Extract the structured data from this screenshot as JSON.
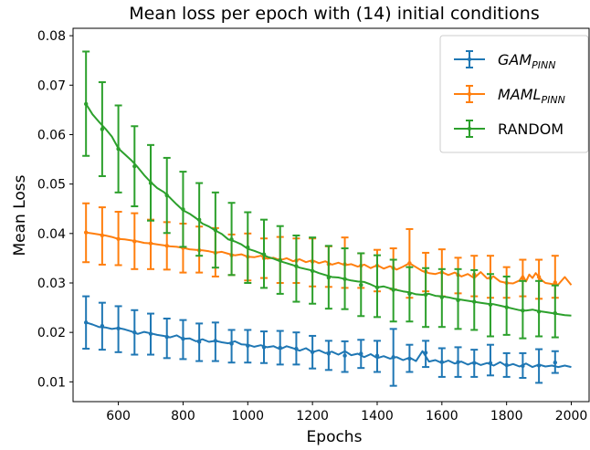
{
  "chart_data": {
    "type": "line",
    "title": "Mean loss per epoch with (14) initial conditions",
    "xlabel": "Epochs",
    "ylabel": "Mean Loss",
    "xlim": [
      460,
      2055
    ],
    "ylim": [
      0.006,
      0.0815
    ],
    "xticks": [
      600,
      800,
      1000,
      1200,
      1400,
      1600,
      1800,
      2000
    ],
    "yticks": [
      0.01,
      0.02,
      0.03,
      0.04,
      0.05,
      0.06,
      0.07,
      0.08
    ],
    "xtick_labels": [
      "600",
      "800",
      "1000",
      "1200",
      "1400",
      "1600",
      "1800",
      "2000"
    ],
    "ytick_labels": [
      "0.01",
      "0.02",
      "0.03",
      "0.04",
      "0.05",
      "0.06",
      "0.07",
      "0.08"
    ],
    "grid": false,
    "legend_position": "upper right",
    "series": [
      {
        "name": "GAM",
        "subscript": "PINN",
        "color": "#1f77b4",
        "line_x": [
          500,
          520,
          540,
          560,
          580,
          600,
          620,
          640,
          660,
          680,
          700,
          720,
          740,
          760,
          780,
          800,
          820,
          840,
          860,
          880,
          900,
          920,
          940,
          960,
          980,
          1000,
          1020,
          1040,
          1060,
          1080,
          1100,
          1120,
          1140,
          1160,
          1180,
          1200,
          1220,
          1240,
          1260,
          1280,
          1300,
          1320,
          1340,
          1360,
          1380,
          1400,
          1420,
          1440,
          1460,
          1480,
          1500,
          1520,
          1540,
          1560,
          1580,
          1600,
          1620,
          1640,
          1660,
          1680,
          1700,
          1720,
          1740,
          1760,
          1780,
          1800,
          1820,
          1840,
          1860,
          1880,
          1900,
          1920,
          1940,
          1960,
          1980,
          2000
        ],
        "line_y": [
          0.022,
          0.0216,
          0.0211,
          0.021,
          0.0207,
          0.0209,
          0.0206,
          0.0202,
          0.0197,
          0.0201,
          0.0198,
          0.0195,
          0.0193,
          0.019,
          0.0194,
          0.0187,
          0.0188,
          0.0182,
          0.0186,
          0.0181,
          0.0183,
          0.018,
          0.0178,
          0.0182,
          0.0176,
          0.0175,
          0.0171,
          0.0174,
          0.017,
          0.0172,
          0.0166,
          0.0172,
          0.0168,
          0.0163,
          0.0168,
          0.016,
          0.0164,
          0.0158,
          0.0161,
          0.0155,
          0.0162,
          0.0154,
          0.0157,
          0.015,
          0.0156,
          0.0148,
          0.0152,
          0.0147,
          0.015,
          0.0144,
          0.0149,
          0.0142,
          0.0162,
          0.0141,
          0.0144,
          0.0138,
          0.0143,
          0.0137,
          0.0141,
          0.0135,
          0.014,
          0.0134,
          0.0138,
          0.0133,
          0.014,
          0.0132,
          0.0136,
          0.0131,
          0.0137,
          0.013,
          0.0135,
          0.0131,
          0.0133,
          0.013,
          0.0133,
          0.013
        ],
        "error_x": [
          500,
          550,
          600,
          650,
          700,
          750,
          800,
          850,
          900,
          950,
          1000,
          1050,
          1100,
          1150,
          1200,
          1250,
          1300,
          1350,
          1400,
          1450,
          1500,
          1550,
          1600,
          1650,
          1700,
          1750,
          1800,
          1850,
          1900,
          1950
        ],
        "error_y": [
          0.022,
          0.0213,
          0.0208,
          0.02,
          0.0197,
          0.0191,
          0.0187,
          0.0181,
          0.0183,
          0.0177,
          0.0173,
          0.017,
          0.0169,
          0.0167,
          0.016,
          0.0157,
          0.0153,
          0.0157,
          0.0153,
          0.015,
          0.0147,
          0.0159,
          0.014,
          0.014,
          0.0138,
          0.0138,
          0.0134,
          0.0132,
          0.0133,
          0.0139
        ],
        "error_low": [
          0.0167,
          0.0165,
          0.016,
          0.0155,
          0.0155,
          0.0148,
          0.0146,
          0.0142,
          0.0142,
          0.0139,
          0.0139,
          0.0138,
          0.0135,
          0.0135,
          0.0127,
          0.0124,
          0.012,
          0.0128,
          0.012,
          0.0092,
          0.012,
          0.013,
          0.011,
          0.011,
          0.011,
          0.0113,
          0.011,
          0.0108,
          0.0098,
          0.0118
        ],
        "error_high": [
          0.0273,
          0.026,
          0.0253,
          0.0245,
          0.0238,
          0.0228,
          0.0225,
          0.0218,
          0.022,
          0.0205,
          0.0205,
          0.0202,
          0.0203,
          0.02,
          0.0193,
          0.0183,
          0.0182,
          0.0185,
          0.0183,
          0.0207,
          0.0175,
          0.0183,
          0.0168,
          0.017,
          0.0165,
          0.0175,
          0.0158,
          0.0158,
          0.0166,
          0.0162
        ]
      },
      {
        "name": "MAML",
        "subscript": "PINN",
        "color": "#ff7f0e",
        "line_x": [
          500,
          520,
          540,
          560,
          580,
          600,
          620,
          640,
          660,
          680,
          700,
          720,
          740,
          760,
          780,
          800,
          820,
          840,
          860,
          880,
          900,
          920,
          940,
          960,
          980,
          1000,
          1020,
          1040,
          1060,
          1080,
          1100,
          1120,
          1140,
          1160,
          1180,
          1200,
          1220,
          1240,
          1260,
          1280,
          1300,
          1320,
          1340,
          1360,
          1380,
          1400,
          1420,
          1440,
          1460,
          1480,
          1500,
          1520,
          1540,
          1560,
          1580,
          1600,
          1620,
          1640,
          1660,
          1680,
          1700,
          1720,
          1740,
          1760,
          1780,
          1800,
          1820,
          1840,
          1850,
          1860,
          1870,
          1880,
          1890,
          1900,
          1910,
          1920,
          1940,
          1960,
          1980,
          2000
        ],
        "line_y": [
          0.0402,
          0.04,
          0.0398,
          0.0396,
          0.0393,
          0.0389,
          0.0388,
          0.0386,
          0.0384,
          0.0381,
          0.038,
          0.0378,
          0.0376,
          0.0374,
          0.0373,
          0.0371,
          0.0368,
          0.0367,
          0.0366,
          0.0364,
          0.0361,
          0.0363,
          0.0359,
          0.0356,
          0.0358,
          0.0353,
          0.0352,
          0.0355,
          0.0349,
          0.0351,
          0.0346,
          0.035,
          0.0344,
          0.0348,
          0.0342,
          0.0346,
          0.034,
          0.0344,
          0.0337,
          0.0341,
          0.0336,
          0.0338,
          0.0333,
          0.0337,
          0.033,
          0.0336,
          0.0329,
          0.0334,
          0.0327,
          0.0333,
          0.034,
          0.0332,
          0.0324,
          0.032,
          0.0318,
          0.0322,
          0.0316,
          0.0321,
          0.0313,
          0.0318,
          0.031,
          0.0322,
          0.0309,
          0.0313,
          0.0303,
          0.03,
          0.0299,
          0.0305,
          0.0315,
          0.0303,
          0.0317,
          0.031,
          0.032,
          0.0312,
          0.0305,
          0.03,
          0.0298,
          0.0297,
          0.0312,
          0.0296
        ],
        "error_x": [
          500,
          550,
          600,
          650,
          700,
          750,
          800,
          850,
          900,
          950,
          1000,
          1050,
          1100,
          1150,
          1200,
          1250,
          1300,
          1350,
          1400,
          1450,
          1500,
          1550,
          1600,
          1650,
          1700,
          1750,
          1800,
          1850,
          1900,
          1950
        ],
        "error_y": [
          0.0402,
          0.0396,
          0.0389,
          0.0384,
          0.038,
          0.0375,
          0.0371,
          0.0366,
          0.0361,
          0.0356,
          0.0353,
          0.035,
          0.0347,
          0.0345,
          0.0343,
          0.0338,
          0.0338,
          0.0335,
          0.0335,
          0.033,
          0.034,
          0.0323,
          0.0321,
          0.0316,
          0.0317,
          0.031,
          0.03,
          0.031,
          0.0312,
          0.0301
        ],
        "error_low": [
          0.0342,
          0.0337,
          0.0336,
          0.0328,
          0.0328,
          0.0327,
          0.0321,
          0.0321,
          0.0313,
          0.0316,
          0.0305,
          0.031,
          0.03,
          0.03,
          0.0293,
          0.0292,
          0.029,
          0.029,
          0.0283,
          0.0287,
          0.027,
          0.0283,
          0.0273,
          0.0279,
          0.0273,
          0.027,
          0.027,
          0.0273,
          0.0268,
          0.027
        ],
        "error_high": [
          0.0461,
          0.0453,
          0.0444,
          0.0441,
          0.0428,
          0.0423,
          0.042,
          0.0414,
          0.0411,
          0.0398,
          0.04,
          0.039,
          0.0393,
          0.039,
          0.039,
          0.0374,
          0.0392,
          0.036,
          0.0367,
          0.037,
          0.0409,
          0.0361,
          0.0368,
          0.0351,
          0.0355,
          0.0355,
          0.0332,
          0.0347,
          0.0347,
          0.0355
        ]
      },
      {
        "name": "RANDOM",
        "subscript": "",
        "color": "#2ca02c",
        "line_x": [
          500,
          520,
          540,
          560,
          580,
          600,
          620,
          640,
          660,
          680,
          700,
          720,
          740,
          760,
          780,
          800,
          820,
          840,
          860,
          880,
          900,
          920,
          940,
          960,
          980,
          1000,
          1020,
          1040,
          1060,
          1080,
          1100,
          1120,
          1140,
          1160,
          1180,
          1200,
          1220,
          1240,
          1260,
          1280,
          1300,
          1320,
          1340,
          1360,
          1380,
          1400,
          1420,
          1440,
          1460,
          1480,
          1500,
          1520,
          1540,
          1560,
          1580,
          1600,
          1620,
          1640,
          1660,
          1680,
          1700,
          1720,
          1740,
          1760,
          1780,
          1800,
          1820,
          1840,
          1860,
          1880,
          1900,
          1920,
          1940,
          1960,
          1980,
          2000
        ],
        "line_y": [
          0.0662,
          0.0641,
          0.0626,
          0.0612,
          0.0596,
          0.0572,
          0.056,
          0.0548,
          0.0534,
          0.0518,
          0.0504,
          0.0492,
          0.0484,
          0.0472,
          0.0459,
          0.0447,
          0.044,
          0.0431,
          0.042,
          0.0414,
          0.0406,
          0.0399,
          0.0388,
          0.0384,
          0.0378,
          0.0369,
          0.0365,
          0.036,
          0.0353,
          0.0349,
          0.0344,
          0.034,
          0.0336,
          0.0331,
          0.0328,
          0.0325,
          0.032,
          0.0316,
          0.0312,
          0.0311,
          0.0308,
          0.0305,
          0.0303,
          0.0302,
          0.0297,
          0.0291,
          0.0293,
          0.0289,
          0.0286,
          0.0283,
          0.0281,
          0.0277,
          0.0276,
          0.0278,
          0.0274,
          0.0273,
          0.0271,
          0.0268,
          0.0266,
          0.0264,
          0.0262,
          0.026,
          0.0258,
          0.0257,
          0.0254,
          0.0251,
          0.0248,
          0.0245,
          0.0244,
          0.0246,
          0.0243,
          0.0241,
          0.0239,
          0.0237,
          0.0235,
          0.0234
        ],
        "error_x": [
          500,
          550,
          600,
          650,
          700,
          750,
          800,
          850,
          900,
          950,
          1000,
          1050,
          1100,
          1150,
          1200,
          1250,
          1300,
          1350,
          1400,
          1450,
          1500,
          1550,
          1600,
          1650,
          1700,
          1750,
          1800,
          1850,
          1900,
          1950
        ],
        "error_y": [
          0.0662,
          0.0611,
          0.0571,
          0.0536,
          0.0502,
          0.0477,
          0.0449,
          0.0428,
          0.0407,
          0.0388,
          0.0372,
          0.0358,
          0.0346,
          0.0334,
          0.0324,
          0.0311,
          0.0308,
          0.0296,
          0.0291,
          0.0286,
          0.0278,
          0.0276,
          0.0271,
          0.0265,
          0.0262,
          0.0256,
          0.0251,
          0.0244,
          0.0242,
          0.0239
        ],
        "error_low": [
          0.0557,
          0.0516,
          0.0483,
          0.0455,
          0.0426,
          0.0401,
          0.0373,
          0.0355,
          0.0331,
          0.0316,
          0.03,
          0.029,
          0.0278,
          0.0262,
          0.0258,
          0.0248,
          0.0247,
          0.0233,
          0.0231,
          0.0222,
          0.0222,
          0.0211,
          0.0211,
          0.0207,
          0.0205,
          0.0192,
          0.0195,
          0.0188,
          0.0192,
          0.019
        ],
        "error_high": [
          0.0768,
          0.0706,
          0.0659,
          0.0617,
          0.0579,
          0.0553,
          0.0525,
          0.0502,
          0.0483,
          0.0462,
          0.0443,
          0.0428,
          0.0415,
          0.0396,
          0.0392,
          0.0375,
          0.037,
          0.036,
          0.0356,
          0.0347,
          0.0332,
          0.033,
          0.0328,
          0.0328,
          0.0326,
          0.0318,
          0.0313,
          0.0304,
          0.0304,
          0.0295
        ]
      }
    ]
  }
}
